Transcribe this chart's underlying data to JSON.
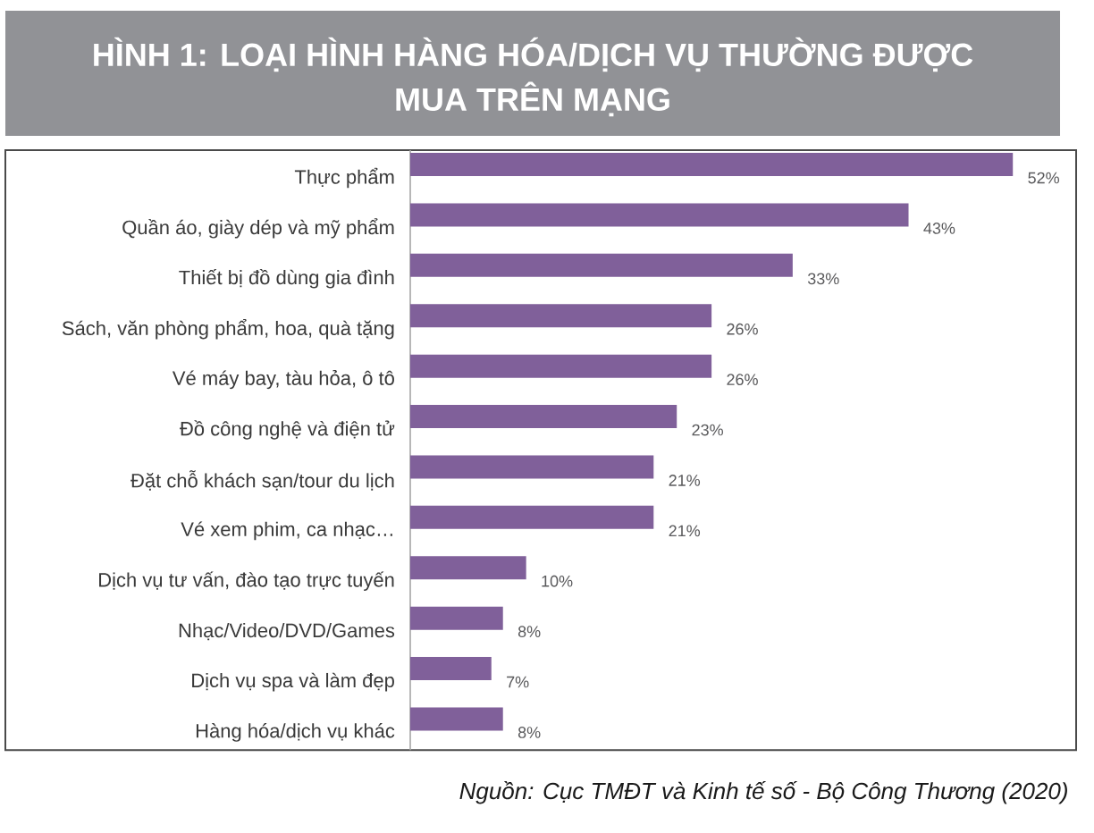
{
  "chart_data": {
    "type": "bar",
    "orientation": "horizontal",
    "title": "HÌNH 1: LOẠI HÌNH HÀNG HÓA/DỊCH VỤ THƯỜNG ĐƯỢC MUA TRÊN MẠNG",
    "categories": [
      "Thực phẩm",
      "Quần áo, giày dép và mỹ phẩm",
      "Thiết bị đồ dùng gia đình",
      "Sách, văn phòng phẩm, hoa, quà tặng",
      "Vé máy bay, tàu hỏa, ô tô",
      "Đồ công nghệ và điện tử",
      "Đặt chỗ khách sạn/tour du lịch",
      "Vé xem phim, ca nhạc…",
      "Dịch vụ tư vấn, đào tạo trực tuyến",
      "Nhạc/Video/DVD/Games",
      "Dịch vụ spa và làm đẹp",
      "Hàng hóa/dịch vụ khác"
    ],
    "values": [
      52,
      43,
      33,
      26,
      26,
      23,
      21,
      21,
      10,
      8,
      7,
      8
    ],
    "value_labels": [
      "52%",
      "43%",
      "33%",
      "26%",
      "26%",
      "23%",
      "21%",
      "21%",
      "10%",
      "8%",
      "7%",
      "8%"
    ],
    "color": "#80609a",
    "tick_labels": "y",
    "annotations": [
      "Nguồn: Cục TMĐT và Kinh tế số - Bộ Công Thương (2020)"
    ]
  }
}
